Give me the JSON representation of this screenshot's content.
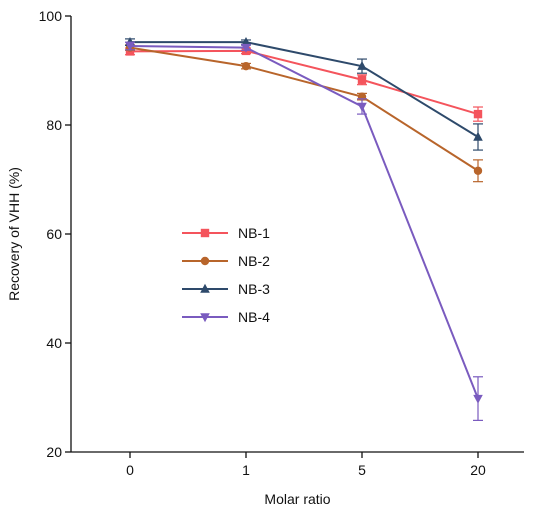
{
  "chart_data": {
    "type": "line",
    "xlabel": "Molar ratio",
    "ylabel": "Recovery of VHH (%)",
    "categories": [
      "0",
      "1",
      "5",
      "20"
    ],
    "ylim": [
      20,
      100
    ],
    "yticks": [
      20,
      40,
      60,
      80,
      100
    ],
    "grid": false,
    "legend_position": "center-left",
    "series": [
      {
        "name": "NB-1",
        "color": "#f4545c",
        "marker": "square",
        "values": [
          93.5,
          93.6,
          88.3,
          82.0
        ],
        "errors": [
          0.6,
          0.5,
          0.9,
          1.3
        ]
      },
      {
        "name": "NB-2",
        "color": "#b8652b",
        "marker": "circle",
        "values": [
          94.2,
          90.8,
          85.2,
          71.6
        ],
        "errors": [
          0.5,
          0.5,
          0.6,
          2.0
        ]
      },
      {
        "name": "NB-3",
        "color": "#2e4a6b",
        "marker": "triangle-up",
        "values": [
          95.2,
          95.2,
          90.8,
          77.8
        ],
        "errors": [
          0.6,
          0.4,
          1.3,
          2.4
        ]
      },
      {
        "name": "NB-4",
        "color": "#7a5bbf",
        "marker": "triangle-down",
        "values": [
          94.5,
          94.2,
          83.4,
          29.8
        ],
        "errors": [
          0.7,
          0.5,
          1.4,
          4.0
        ]
      }
    ]
  }
}
